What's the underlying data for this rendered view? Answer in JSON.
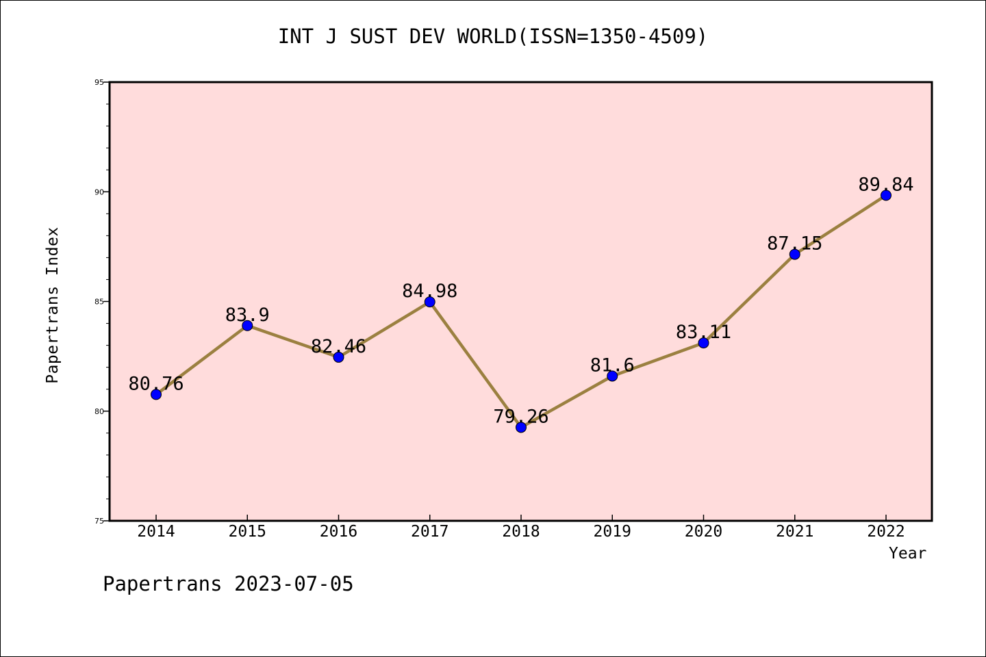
{
  "chart_data": {
    "type": "line",
    "title": "INT J SUST DEV WORLD(ISSN=1350-4509)",
    "xlabel": "Year",
    "ylabel": "Papertrans Index",
    "x": [
      "2014",
      "2015",
      "2016",
      "2017",
      "2018",
      "2019",
      "2020",
      "2021",
      "2022"
    ],
    "values": [
      80.76,
      83.9,
      82.46,
      84.98,
      79.26,
      81.6,
      83.11,
      87.15,
      89.84
    ],
    "data_labels": [
      "80.76",
      "83.9",
      "82.46",
      "84.98",
      "79.26",
      "81.6",
      "83.11",
      "87.15",
      "89.84"
    ],
    "ylim": [
      75,
      95
    ],
    "yticks": [
      75,
      80,
      85,
      90,
      95
    ],
    "grid": false,
    "legend": "none",
    "colors": {
      "plot_background": "#ffdcdc",
      "line": "#9b8040",
      "marker": "#0000ff"
    }
  },
  "footer": "Papertrans 2023-07-05"
}
